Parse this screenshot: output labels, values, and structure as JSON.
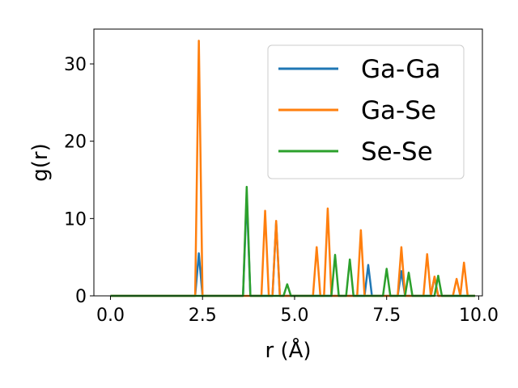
{
  "chart_data": {
    "type": "line",
    "title": "",
    "xlabel": "r (Å)",
    "ylabel": "g(r)",
    "xlim": [
      -0.45,
      10.1
    ],
    "ylim": [
      0,
      34.5
    ],
    "xticks": [
      0.0,
      2.5,
      5.0,
      7.5,
      10.0
    ],
    "xtick_labels": [
      "0.0",
      "2.5",
      "5.0",
      "7.5",
      "10.0"
    ],
    "yticks": [
      0,
      10,
      20,
      30
    ],
    "ytick_labels": [
      "0",
      "10",
      "20",
      "30"
    ],
    "grid": false,
    "legend_position": "top-right",
    "x_range": [
      0.0,
      9.9
    ],
    "series": [
      {
        "name": "Ga-Ga",
        "color": "#1f77b4",
        "peaks": [
          [
            2.4,
            5.5
          ],
          [
            3.7,
            13.0
          ],
          [
            4.5,
            9.5
          ],
          [
            7.0,
            4.0
          ],
          [
            7.9,
            3.2
          ],
          [
            8.8,
            2.4
          ]
        ]
      },
      {
        "name": "Ga-Se",
        "color": "#ff7f0e",
        "peaks": [
          [
            2.4,
            33.0
          ],
          [
            4.2,
            11.0
          ],
          [
            4.5,
            9.7
          ],
          [
            5.6,
            6.3
          ],
          [
            5.9,
            11.3
          ],
          [
            6.8,
            8.5
          ],
          [
            7.9,
            6.3
          ],
          [
            8.6,
            5.4
          ],
          [
            8.8,
            2.5
          ],
          [
            9.4,
            2.2
          ],
          [
            9.6,
            4.3
          ]
        ]
      },
      {
        "name": "Se-Se",
        "color": "#2ca02c",
        "peaks": [
          [
            3.7,
            14.1
          ],
          [
            4.8,
            1.5
          ],
          [
            6.1,
            5.3
          ],
          [
            6.5,
            4.7
          ],
          [
            7.5,
            3.5
          ],
          [
            8.1,
            3.0
          ],
          [
            8.9,
            2.6
          ]
        ]
      }
    ]
  }
}
